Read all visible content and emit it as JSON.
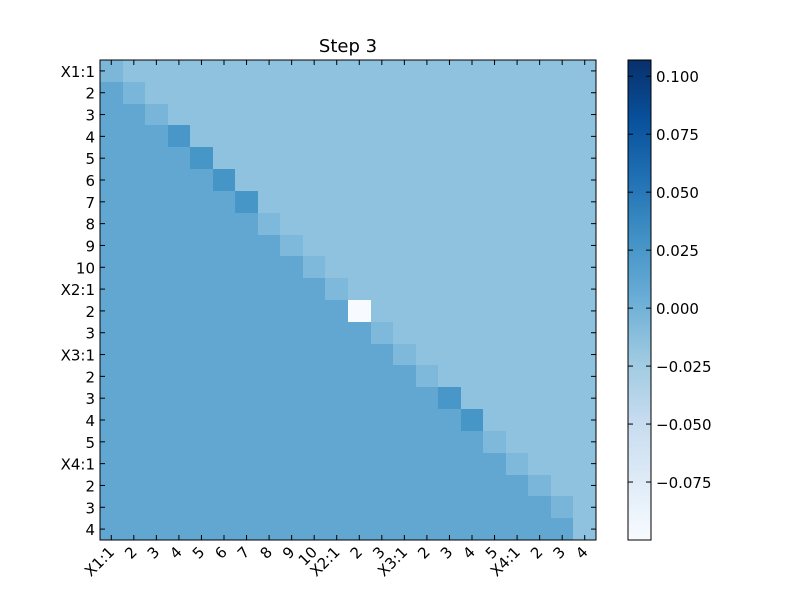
{
  "chart_data": {
    "type": "heatmap",
    "title": "Step 3",
    "xlabel": "",
    "ylabel": "",
    "row_labels": [
      "X1:1",
      "2",
      "3",
      "4",
      "5",
      "6",
      "7",
      "8",
      "9",
      "10",
      "X2:1",
      "2",
      "3",
      "X3:1",
      "2",
      "3",
      "4",
      "5",
      "X4:1",
      "2",
      "3",
      "4"
    ],
    "col_labels": [
      "X1:1",
      "2",
      "3",
      "4",
      "5",
      "6",
      "7",
      "8",
      "9",
      "10",
      "X2:1",
      "2",
      "3",
      "X3:1",
      "2",
      "3",
      "4",
      "5",
      "X4:1",
      "2",
      "3",
      "4"
    ],
    "colormap": "Blues",
    "vmin": -0.1,
    "vmax": 0.107,
    "upper_value": -0.015,
    "lower_value": 0.01,
    "diagonal": [
      -0.005,
      -0.004,
      -0.003,
      0.025,
      0.026,
      0.027,
      0.026,
      -0.006,
      -0.006,
      -0.006,
      -0.006,
      -0.1,
      -0.006,
      -0.006,
      -0.006,
      0.025,
      0.026,
      -0.006,
      -0.006,
      -0.004,
      -0.003,
      -0.015
    ],
    "colorbar_ticks": [
      0.1,
      0.075,
      0.05,
      0.025,
      0.0,
      -0.025,
      -0.05,
      -0.075
    ],
    "colorbar_tick_labels": [
      "0.100",
      "0.075",
      "0.050",
      "0.025",
      "0.000",
      "−0.025",
      "−0.050",
      "−0.075"
    ],
    "grid": false
  }
}
